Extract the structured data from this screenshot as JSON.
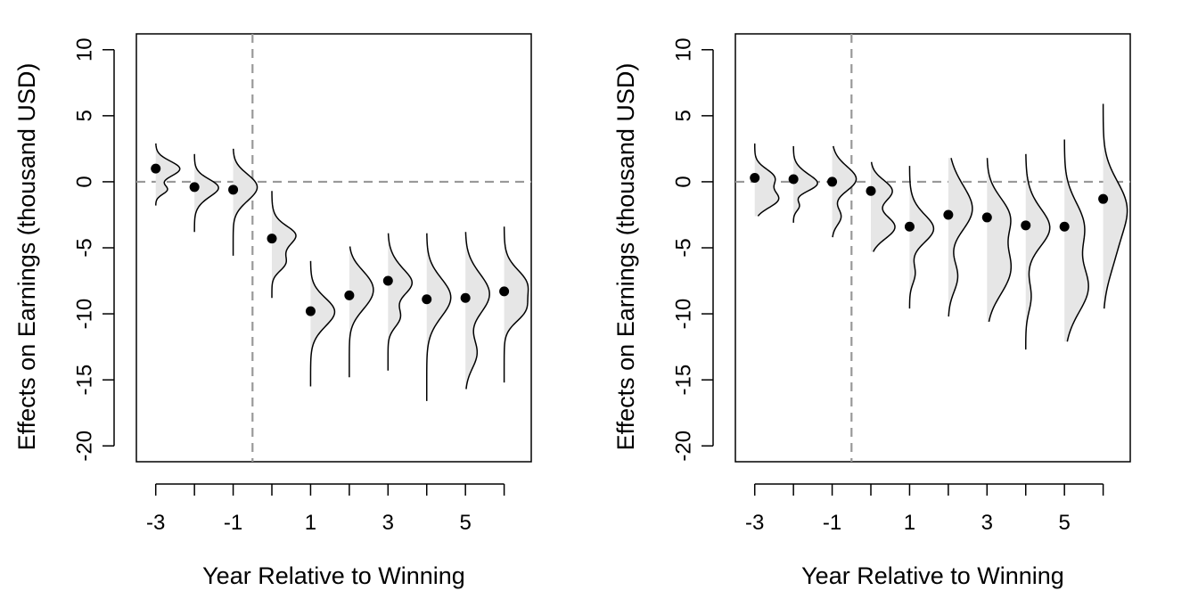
{
  "chart_data": [
    {
      "type": "scatter",
      "title": "",
      "xlabel": "Year Relative to Winning",
      "ylabel": "Effects on Earnings (thousand USD)",
      "xlim": [
        -3.5,
        6.7
      ],
      "ylim": [
        -21.2,
        11.2
      ],
      "x_ticks": [
        -3,
        -2,
        -1,
        0,
        1,
        2,
        3,
        4,
        5,
        6
      ],
      "x_tick_labels": [
        "-3",
        "-1",
        "1",
        "3",
        "5"
      ],
      "x_tick_label_positions": [
        -3,
        -1,
        1,
        3,
        5
      ],
      "y_ticks": [
        10,
        5,
        0,
        -5,
        -10,
        -15,
        -20
      ],
      "y_tick_labels": [
        "10",
        "5",
        "0",
        "-5",
        "-10",
        "-15",
        "-20"
      ],
      "reference_lines": {
        "vertical": -0.5,
        "horizontal": 0
      },
      "grid": false,
      "legend": "none",
      "points": [
        {
          "x": -3,
          "y": 1.0,
          "range": [
            -1.8,
            2.9
          ]
        },
        {
          "x": -2,
          "y": -0.4,
          "range": [
            -3.8,
            2.1
          ]
        },
        {
          "x": -1,
          "y": -0.6,
          "range": [
            -5.6,
            2.5
          ]
        },
        {
          "x": 0,
          "y": -4.3,
          "range": [
            -8.8,
            -0.7
          ]
        },
        {
          "x": 1,
          "y": -9.8,
          "range": [
            -15.5,
            -6.0
          ]
        },
        {
          "x": 2,
          "y": -8.6,
          "range": [
            -14.8,
            -4.9
          ]
        },
        {
          "x": 3,
          "y": -7.5,
          "range": [
            -14.3,
            -3.9
          ]
        },
        {
          "x": 4,
          "y": -8.9,
          "range": [
            -16.6,
            -3.9
          ]
        },
        {
          "x": 5,
          "y": -8.8,
          "range": [
            -15.7,
            -3.8
          ]
        },
        {
          "x": 6,
          "y": -8.3,
          "range": [
            -15.2,
            -3.4
          ]
        }
      ]
    },
    {
      "type": "scatter",
      "title": "",
      "xlabel": "Year Relative to Winning",
      "ylabel": "Effects on Earnings (thousand USD)",
      "xlim": [
        -3.5,
        6.7
      ],
      "ylim": [
        -21.2,
        11.2
      ],
      "x_ticks": [
        -3,
        -2,
        -1,
        0,
        1,
        2,
        3,
        4,
        5,
        6
      ],
      "x_tick_labels": [
        "-3",
        "-1",
        "1",
        "3",
        "5"
      ],
      "x_tick_label_positions": [
        -3,
        -1,
        1,
        3,
        5
      ],
      "y_ticks": [
        10,
        5,
        0,
        -5,
        -10,
        -15,
        -20
      ],
      "y_tick_labels": [
        "10",
        "5",
        "0",
        "-5",
        "-10",
        "-15",
        "-20"
      ],
      "reference_lines": {
        "vertical": -0.5,
        "horizontal": 0
      },
      "grid": false,
      "legend": "none",
      "points": [
        {
          "x": -3,
          "y": 0.3,
          "range": [
            -2.6,
            2.9
          ]
        },
        {
          "x": -2,
          "y": 0.2,
          "range": [
            -3.1,
            2.7
          ]
        },
        {
          "x": -1,
          "y": 0.0,
          "range": [
            -4.2,
            2.7
          ]
        },
        {
          "x": 0,
          "y": -0.7,
          "range": [
            -5.3,
            1.5
          ]
        },
        {
          "x": 1,
          "y": -3.4,
          "range": [
            -9.6,
            1.2
          ]
        },
        {
          "x": 2,
          "y": -2.5,
          "range": [
            -10.2,
            1.8
          ]
        },
        {
          "x": 3,
          "y": -2.7,
          "range": [
            -10.6,
            1.8
          ]
        },
        {
          "x": 4,
          "y": -3.3,
          "range": [
            -12.7,
            2.1
          ]
        },
        {
          "x": 5,
          "y": -3.4,
          "range": [
            -12.1,
            3.2
          ]
        },
        {
          "x": 6,
          "y": -1.3,
          "range": [
            -9.6,
            5.9
          ]
        }
      ]
    }
  ]
}
